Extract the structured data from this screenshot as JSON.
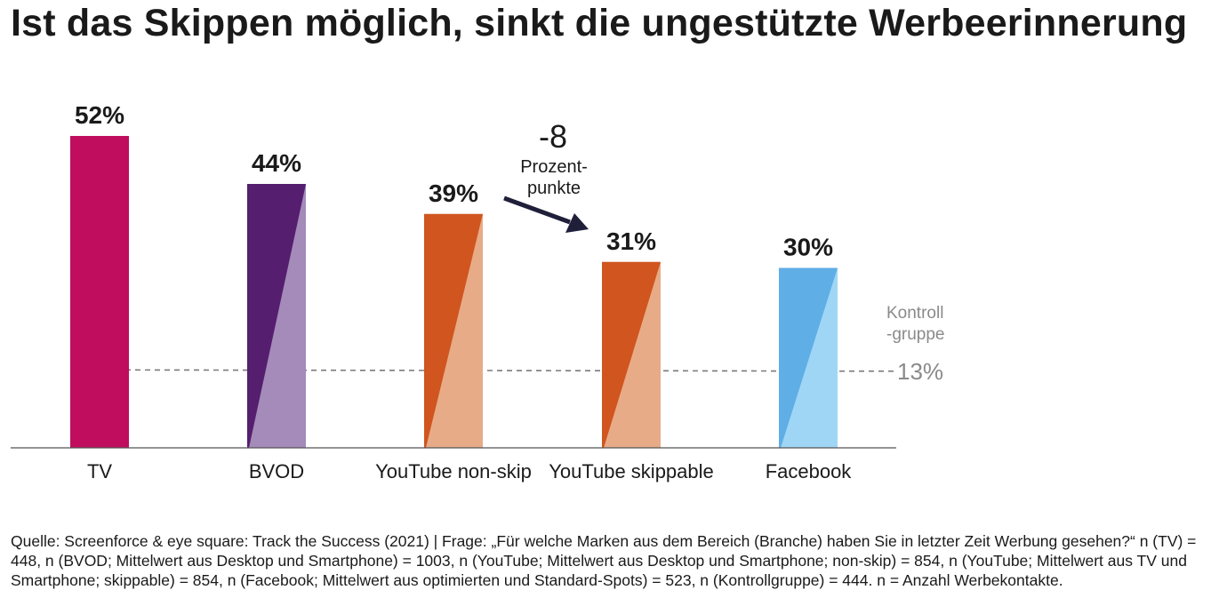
{
  "title": "Ist das Skippen möglich, sinkt die ungestützte Werbeerinnerung",
  "chart_data": {
    "type": "bar",
    "categories": [
      "TV",
      "BVOD",
      "YouTube non-skip",
      "YouTube skippable",
      "Facebook"
    ],
    "values": [
      52,
      44,
      39,
      31,
      30
    ],
    "value_labels": [
      "52%",
      "44%",
      "39%",
      "31%",
      "30%"
    ],
    "unit": "%",
    "colors": [
      {
        "dark": "#C00D5E",
        "light": "#C00D5E"
      },
      {
        "dark": "#551E6E",
        "light": "#A48BB9"
      },
      {
        "dark": "#D0551F",
        "light": "#E8AB87"
      },
      {
        "dark": "#D0551F",
        "light": "#E8AB87"
      },
      {
        "dark": "#5FAEE6",
        "light": "#9FD6F5"
      }
    ],
    "ylim": [
      0,
      52
    ],
    "grid": false,
    "reference_line": {
      "value": 13,
      "label_lines": [
        "Kontroll",
        "-gruppe"
      ],
      "value_label": "13%",
      "color": "#7A7A7A"
    },
    "annotation": {
      "from_category": "YouTube non-skip",
      "to_category": "YouTube skippable",
      "value_text": "-8",
      "text_lines": [
        "Prozent-",
        "punkte"
      ]
    }
  },
  "footnote": "Quelle: Screenforce & eye square: Track the Success (2021) | Frage: „Für welche Marken aus dem Bereich (Branche) haben Sie in letzter Zeit Werbung gesehen?“ n (TV) = 448, n (BVOD; Mittelwert aus Desktop und Smartphone) = 1003, n (YouTube; Mittelwert aus Desktop und Smartphone; non-skip) = 854, n (YouTube; Mittelwert aus TV und Smartphone; skippable) = 854, n (Facebook; Mittelwert aus optimierten und Standard-Spots) = 523, n (Kontrollgruppe) = 444. n = Anzahl Werbekontakte."
}
